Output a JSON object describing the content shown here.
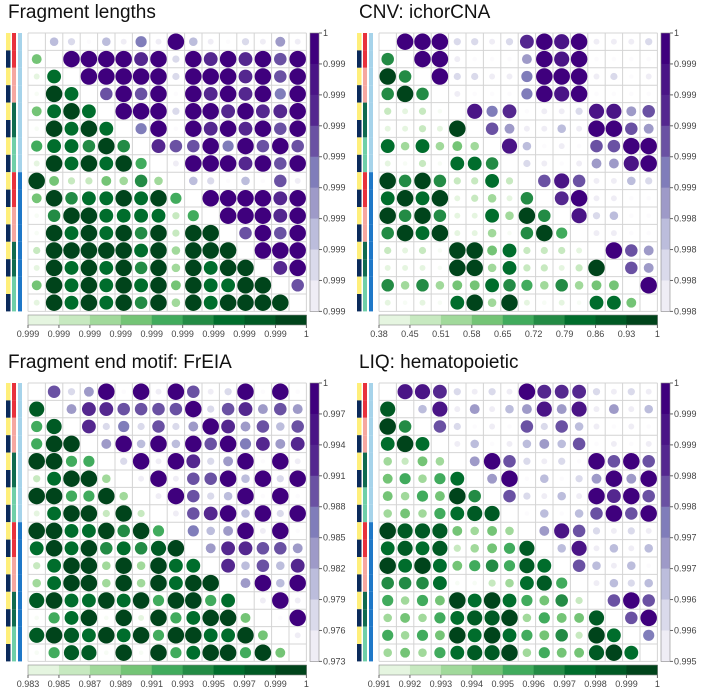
{
  "palettes": {
    "purple": [
      "#fcfbfd",
      "#efedf5",
      "#dadaeb",
      "#bcbddc",
      "#9e9ac8",
      "#807dba",
      "#6a51a3",
      "#54278f",
      "#4a1486",
      "#3f007d"
    ],
    "green": [
      "#f7fcf5",
      "#e5f5e0",
      "#c7e9c0",
      "#a1d99b",
      "#74c476",
      "#41ab5d",
      "#238b45",
      "#006d2c",
      "#005a24",
      "#00441b"
    ],
    "annot_a": [
      "#ffef7a",
      "#0b2a5b"
    ],
    "annot_b": [
      "#e8323c",
      "#f6a7a0",
      "#0f6b4f",
      "#6fcfa8"
    ],
    "annot_c": [
      "#a6d3ea",
      "#1f78c8"
    ]
  },
  "chart_data": [
    {
      "type": "heatmap",
      "title": "Fragment lengths",
      "encoding": "16x16 correlation matrix; each char = level 0-9 (upper triangle purple scale, lower triangle green scale, '-' diagonal)",
      "levels": [
        "-320315193102141",
        "4-99997929797969",
        "17-9999929997969",
        "097-696909797959",
        "4797-99929979779",
        "09797-5909797969",
        "577696-766959696",
        "1979795-19997969",
        "94224363-3203061",
        "496779795-999979",
        "0699777725-99979",
        "09797969299-6969",
        "299999793999-999",
        "1979796939799-79",
        "49797979497799-6",
        "197979693979999-"
      ],
      "right_ticks": [
        "1",
        "0.999",
        "0.999",
        "0.999",
        "0.999",
        "0.999",
        "0.999",
        "0.999",
        "0.999",
        "0.999"
      ],
      "bottom_ticks": [
        "0.999",
        "0.999",
        "0.999",
        "0.999",
        "0.999",
        "0.999",
        "0.999",
        "0.999",
        "0.999",
        "1"
      ]
    },
    {
      "type": "heatmap",
      "title": "CNV: ichorCNA",
      "levels": [
        "-999221279891112",
        "6-99100049890000",
        "96-9221159991201",
        "696-100059890000",
        "2120-85701128846",
        "11219-6411319964",
        "737343-830106699",
        "1020776-21014489",
        "96962272-6861132",
        "797912316-791100",
        "9696117396-82300",
        "69791130695-1100",
        "212099472221-964",
        "1110993722129-64",
        "63634476536344-9",
        "101079391010774-"
      ],
      "right_ticks": [
        "1",
        "0.999",
        "0.999",
        "0.999",
        "0.999",
        "0.999",
        "0.998",
        "0.998",
        "0.998",
        "0.998"
      ],
      "bottom_ticks": [
        "0.38",
        "0.45",
        "0.51",
        "0.58",
        "0.65",
        "0.72",
        "0.79",
        "0.86",
        "0.93",
        "1"
      ]
    },
    {
      "type": "heatmap",
      "title": "Fragment end motif: FrEIA",
      "levels": [
        "-624909196129090",
        "8-47766669267464",
        "58-7252624974636",
        "599-493939695747",
        "9955-29197249091",
        "27993-1916693929",
        "995593-196239090",
        "1799292-16793929",
        "99779695-5349190",
        "797967689-477664",
        "2799393977-73637",
        "37993939799-4939",
        "897797959957-191",
        "0579091957994-09",
        "89879795997794-1",
        "058809095799594-"
      ],
      "right_ticks": [
        "1",
        "0.997",
        "0.994",
        "0.991",
        "0.988",
        "0.985",
        "0.982",
        "0.979",
        "0.976",
        "0.973"
      ],
      "bottom_ticks": [
        "0.983",
        "0.985",
        "0.987",
        "0.989",
        "0.991",
        "0.993",
        "0.995",
        "0.997",
        "0.999",
        "1"
      ]
    },
    {
      "type": "heatmap",
      "title": "LIQ: hematopoietic",
      "levels": [
        "-887212197772121",
        "8-38141348481413",
        "96-6201062631010",
        "797-130134360101",
        "3243-49621209696",
        "45357-4903024949",
        "435496-621319796",
        "3435788-03036969",
        "98884343-4862121",
        "787823458-381313",
        "9797456587-63130",
        "66670023785-1323",
        "535497975462-696",
        "3435788935448-69",
        "53549797546297-5",
        "343578893544897-"
      ],
      "right_ticks": [
        "1",
        "0.999",
        "0.999",
        "0.998",
        "0.998",
        "0.997",
        "0.997",
        "0.996",
        "0.996",
        "0.995"
      ],
      "bottom_ticks": [
        "0.991",
        "0.992",
        "0.993",
        "0.994",
        "0.995",
        "0.996",
        "0.997",
        "0.998",
        "0.999",
        "1"
      ]
    }
  ]
}
